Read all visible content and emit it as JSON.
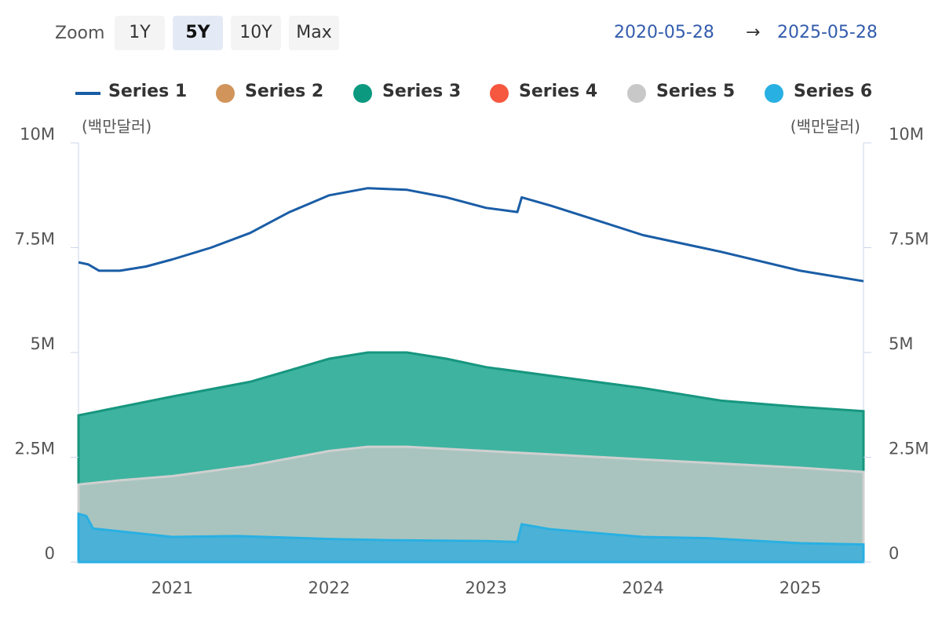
{
  "toolbar": {
    "zoom_label": "Zoom",
    "buttons": [
      "1Y",
      "5Y",
      "10Y",
      "Max"
    ],
    "active": "5Y",
    "range_start": "2020-05-28",
    "range_arrow": "→",
    "range_end": "2025-05-28"
  },
  "colors": {
    "series1": "#1a5da6",
    "series2": "#d1955c",
    "series3": "#0b9a80",
    "series4": "#f5573f",
    "series5": "#c8c8c8",
    "series6": "#29b0e2"
  },
  "chart_data": {
    "type": "area",
    "x_type": "date",
    "x_range": [
      "2020-05-28",
      "2025-05-28"
    ],
    "left_unit": "(백만달러)",
    "right_unit": "(백만달러)",
    "y_range": [
      0,
      10000000
    ],
    "y_ticks": [
      0,
      2500000,
      5000000,
      7500000,
      10000000
    ],
    "y_tick_labels": [
      "0",
      "2.5M",
      "5M",
      "7.5M",
      "10M"
    ],
    "x_ticks": [
      "2021-01-01",
      "2022-01-01",
      "2023-01-01",
      "2024-01-01",
      "2025-01-01"
    ],
    "x_tick_labels": [
      "2021",
      "2022",
      "2023",
      "2024",
      "2025"
    ],
    "legend_position": "top",
    "stacked": true,
    "series": [
      {
        "name": "Series 1",
        "kind": "line",
        "color_key": "series1",
        "points": [
          [
            "2020-05-28",
            7150000
          ],
          [
            "2020-06-20",
            7100000
          ],
          [
            "2020-07-15",
            6950000
          ],
          [
            "2020-09-01",
            6950000
          ],
          [
            "2020-11-01",
            7050000
          ],
          [
            "2021-01-01",
            7220000
          ],
          [
            "2021-04-01",
            7500000
          ],
          [
            "2021-07-01",
            7850000
          ],
          [
            "2021-10-01",
            8350000
          ],
          [
            "2022-01-01",
            8750000
          ],
          [
            "2022-04-01",
            8920000
          ],
          [
            "2022-07-01",
            8880000
          ],
          [
            "2022-10-01",
            8700000
          ],
          [
            "2023-01-01",
            8450000
          ],
          [
            "2023-03-15",
            8350000
          ],
          [
            "2023-03-25",
            8700000
          ],
          [
            "2023-06-01",
            8500000
          ],
          [
            "2023-09-01",
            8200000
          ],
          [
            "2024-01-01",
            7800000
          ],
          [
            "2024-07-01",
            7400000
          ],
          [
            "2025-01-01",
            6950000
          ],
          [
            "2025-05-28",
            6700000
          ]
        ]
      },
      {
        "name": "Series 2",
        "kind": "area",
        "color_key": "series2",
        "points": [
          [
            "2020-05-28",
            0
          ],
          [
            "2025-05-28",
            0
          ]
        ]
      },
      {
        "name": "Series 3",
        "kind": "area",
        "color_key": "series3",
        "stack_top": [
          [
            "2020-05-28",
            3500000
          ],
          [
            "2021-01-01",
            3950000
          ],
          [
            "2021-07-01",
            4300000
          ],
          [
            "2022-01-01",
            4850000
          ],
          [
            "2022-04-01",
            5000000
          ],
          [
            "2022-07-01",
            5000000
          ],
          [
            "2022-10-01",
            4850000
          ],
          [
            "2023-01-01",
            4650000
          ],
          [
            "2023-07-01",
            4400000
          ],
          [
            "2024-01-01",
            4150000
          ],
          [
            "2024-07-01",
            3850000
          ],
          [
            "2025-01-01",
            3700000
          ],
          [
            "2025-05-28",
            3600000
          ]
        ]
      },
      {
        "name": "Series 4",
        "kind": "area",
        "color_key": "series4",
        "points": [
          [
            "2020-05-28",
            0
          ],
          [
            "2025-05-28",
            0
          ]
        ]
      },
      {
        "name": "Series 5",
        "kind": "area",
        "color_key": "series5",
        "stack_top": [
          [
            "2020-05-28",
            1850000
          ],
          [
            "2020-09-01",
            1950000
          ],
          [
            "2021-01-01",
            2050000
          ],
          [
            "2021-07-01",
            2300000
          ],
          [
            "2022-01-01",
            2650000
          ],
          [
            "2022-04-01",
            2750000
          ],
          [
            "2022-07-01",
            2750000
          ],
          [
            "2023-01-01",
            2650000
          ],
          [
            "2023-07-01",
            2550000
          ],
          [
            "2024-01-01",
            2450000
          ],
          [
            "2024-07-01",
            2350000
          ],
          [
            "2025-01-01",
            2250000
          ],
          [
            "2025-05-28",
            2150000
          ]
        ]
      },
      {
        "name": "Series 6",
        "kind": "area",
        "color_key": "series6",
        "points": [
          [
            "2020-05-28",
            1150000
          ],
          [
            "2020-06-15",
            1100000
          ],
          [
            "2020-07-01",
            800000
          ],
          [
            "2020-10-01",
            700000
          ],
          [
            "2021-01-01",
            600000
          ],
          [
            "2021-06-01",
            620000
          ],
          [
            "2022-01-01",
            550000
          ],
          [
            "2022-06-01",
            520000
          ],
          [
            "2023-01-01",
            500000
          ],
          [
            "2023-03-15",
            480000
          ],
          [
            "2023-03-25",
            900000
          ],
          [
            "2023-06-01",
            780000
          ],
          [
            "2024-01-01",
            600000
          ],
          [
            "2024-06-01",
            570000
          ],
          [
            "2025-01-01",
            450000
          ],
          [
            "2025-05-28",
            420000
          ]
        ]
      }
    ]
  }
}
